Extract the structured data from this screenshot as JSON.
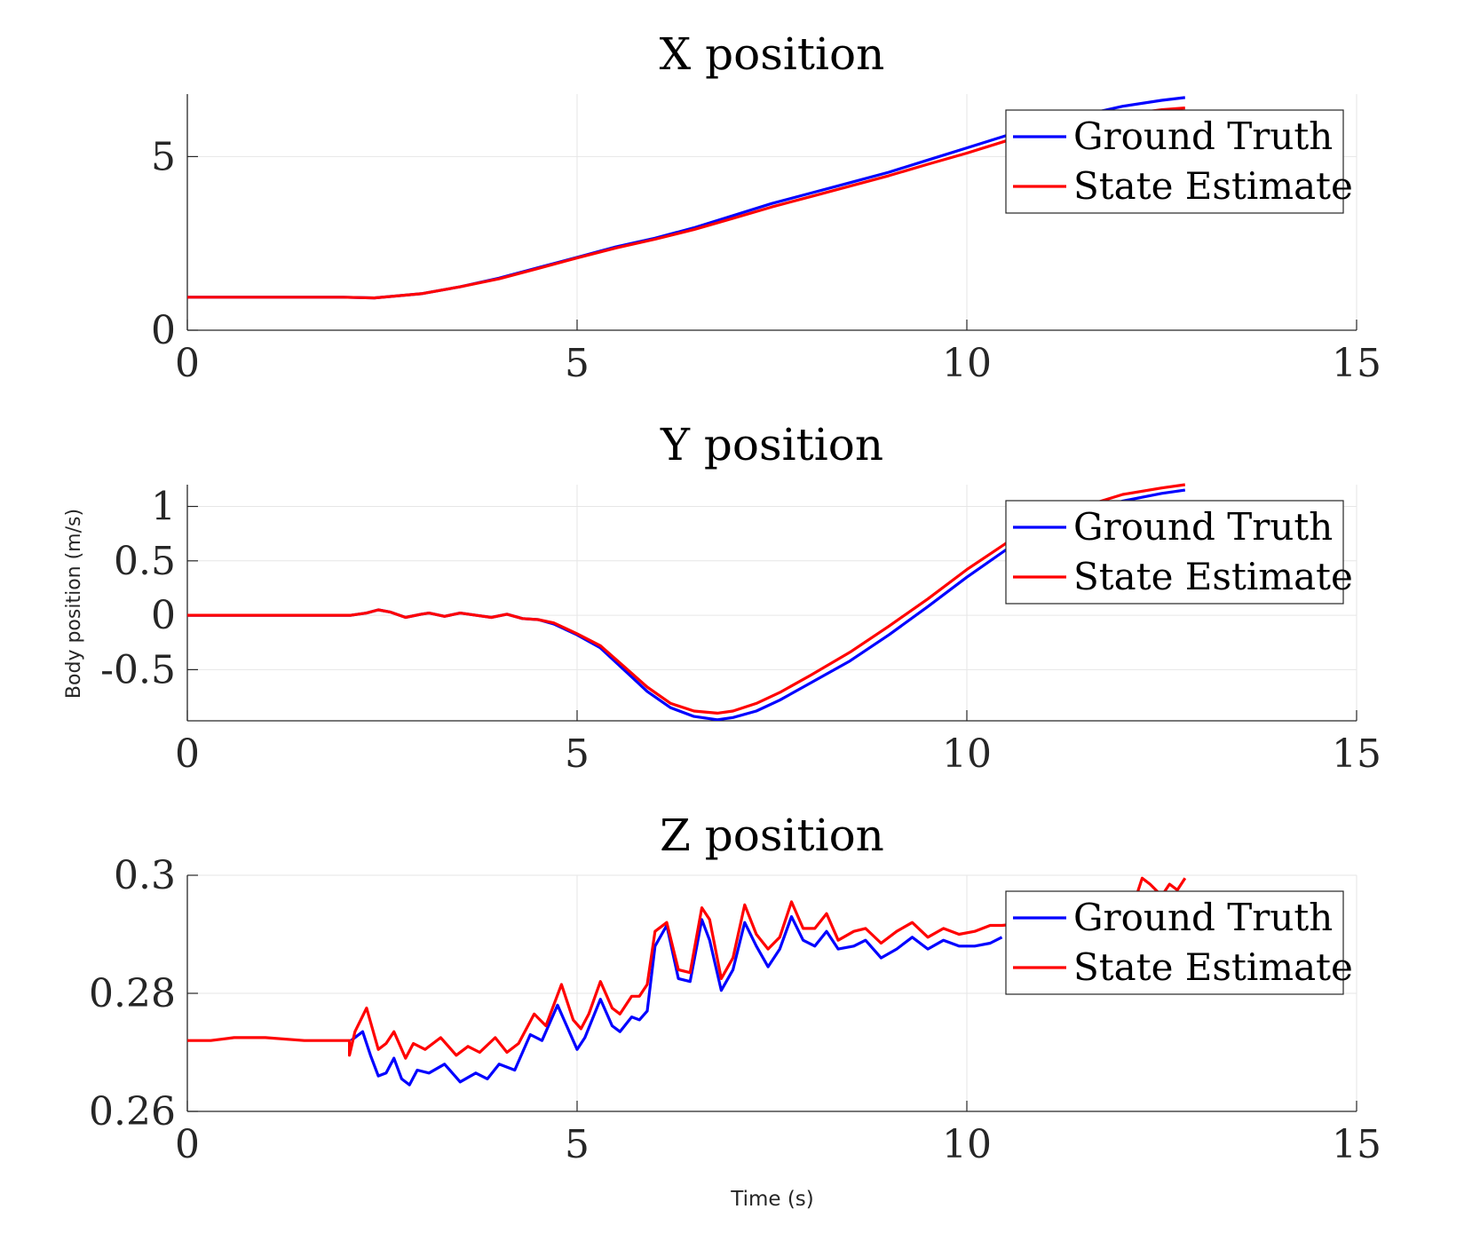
{
  "figure": {
    "ylabel": "Body position (m/s)",
    "xlabel": "Time (s)"
  },
  "chart_data": [
    {
      "type": "line",
      "title": "X position",
      "xlim": [
        0,
        15
      ],
      "ylim": [
        0,
        6.8
      ],
      "xticks": [
        0,
        5,
        10,
        15
      ],
      "yticks": [
        0,
        5
      ],
      "ytick_labels": [
        "0",
        "5"
      ],
      "grid": true,
      "legend": "top-right",
      "series": [
        {
          "name": "Ground Truth",
          "color": "#0000ff",
          "points": [
            [
              0,
              0.95
            ],
            [
              1,
              0.95
            ],
            [
              2,
              0.95
            ],
            [
              2.4,
              0.93
            ],
            [
              3,
              1.05
            ],
            [
              3.5,
              1.25
            ],
            [
              4,
              1.5
            ],
            [
              4.5,
              1.8
            ],
            [
              5,
              2.1
            ],
            [
              5.5,
              2.4
            ],
            [
              6,
              2.65
            ],
            [
              6.5,
              2.95
            ],
            [
              7,
              3.3
            ],
            [
              7.5,
              3.65
            ],
            [
              8,
              3.95
            ],
            [
              8.5,
              4.25
            ],
            [
              9,
              4.55
            ],
            [
              9.5,
              4.9
            ],
            [
              10,
              5.25
            ],
            [
              10.5,
              5.6
            ],
            [
              11,
              5.9
            ],
            [
              11.5,
              6.2
            ],
            [
              12,
              6.45
            ],
            [
              12.5,
              6.62
            ],
            [
              12.8,
              6.7
            ]
          ]
        },
        {
          "name": "State Estimate",
          "color": "#ff0000",
          "points": [
            [
              0,
              0.95
            ],
            [
              1,
              0.95
            ],
            [
              2,
              0.95
            ],
            [
              2.4,
              0.93
            ],
            [
              3,
              1.05
            ],
            [
              3.5,
              1.25
            ],
            [
              4,
              1.48
            ],
            [
              4.5,
              1.78
            ],
            [
              5,
              2.08
            ],
            [
              5.5,
              2.37
            ],
            [
              6,
              2.62
            ],
            [
              6.5,
              2.9
            ],
            [
              7,
              3.22
            ],
            [
              7.5,
              3.55
            ],
            [
              8,
              3.85
            ],
            [
              8.5,
              4.15
            ],
            [
              9,
              4.45
            ],
            [
              9.5,
              4.78
            ],
            [
              10,
              5.1
            ],
            [
              10.5,
              5.45
            ],
            [
              11,
              5.75
            ],
            [
              11.5,
              6.0
            ],
            [
              12,
              6.2
            ],
            [
              12.5,
              6.35
            ],
            [
              12.8,
              6.4
            ]
          ]
        }
      ]
    },
    {
      "type": "line",
      "title": "Y position",
      "xlim": [
        0,
        15
      ],
      "ylim": [
        -0.97,
        1.2
      ],
      "xticks": [
        0,
        5,
        10,
        15
      ],
      "yticks": [
        -0.5,
        0,
        0.5,
        1
      ],
      "ytick_labels": [
        "-0.5",
        "0",
        "0.5",
        "1"
      ],
      "grid": true,
      "legend": "top-right",
      "series": [
        {
          "name": "Ground Truth",
          "color": "#0000ff",
          "points": [
            [
              0,
              0
            ],
            [
              1,
              0
            ],
            [
              2.1,
              0
            ],
            [
              2.3,
              0.02
            ],
            [
              2.45,
              0.05
            ],
            [
              2.6,
              0.03
            ],
            [
              2.8,
              -0.02
            ],
            [
              3,
              0.01
            ],
            [
              3.1,
              0.02
            ],
            [
              3.3,
              -0.01
            ],
            [
              3.5,
              0.02
            ],
            [
              3.7,
              0.0
            ],
            [
              3.9,
              -0.02
            ],
            [
              4.1,
              0.01
            ],
            [
              4.3,
              -0.03
            ],
            [
              4.5,
              -0.04
            ],
            [
              4.7,
              -0.08
            ],
            [
              5,
              -0.18
            ],
            [
              5.3,
              -0.3
            ],
            [
              5.6,
              -0.5
            ],
            [
              5.9,
              -0.7
            ],
            [
              6.2,
              -0.85
            ],
            [
              6.5,
              -0.93
            ],
            [
              6.8,
              -0.96
            ],
            [
              7.0,
              -0.94
            ],
            [
              7.3,
              -0.88
            ],
            [
              7.6,
              -0.78
            ],
            [
              8,
              -0.62
            ],
            [
              8.5,
              -0.42
            ],
            [
              9,
              -0.18
            ],
            [
              9.5,
              0.08
            ],
            [
              10,
              0.35
            ],
            [
              10.5,
              0.6
            ],
            [
              11,
              0.78
            ],
            [
              11.5,
              0.93
            ],
            [
              12,
              1.05
            ],
            [
              12.5,
              1.12
            ],
            [
              12.8,
              1.15
            ]
          ]
        },
        {
          "name": "State Estimate",
          "color": "#ff0000",
          "points": [
            [
              0,
              0
            ],
            [
              1,
              0
            ],
            [
              2.1,
              0
            ],
            [
              2.3,
              0.02
            ],
            [
              2.45,
              0.05
            ],
            [
              2.6,
              0.03
            ],
            [
              2.8,
              -0.02
            ],
            [
              3,
              0.01
            ],
            [
              3.1,
              0.02
            ],
            [
              3.3,
              -0.01
            ],
            [
              3.5,
              0.02
            ],
            [
              3.7,
              0.0
            ],
            [
              3.9,
              -0.02
            ],
            [
              4.1,
              0.01
            ],
            [
              4.3,
              -0.03
            ],
            [
              4.5,
              -0.04
            ],
            [
              4.7,
              -0.07
            ],
            [
              5,
              -0.17
            ],
            [
              5.3,
              -0.28
            ],
            [
              5.6,
              -0.47
            ],
            [
              5.9,
              -0.66
            ],
            [
              6.2,
              -0.81
            ],
            [
              6.5,
              -0.88
            ],
            [
              6.8,
              -0.9
            ],
            [
              7.0,
              -0.88
            ],
            [
              7.3,
              -0.81
            ],
            [
              7.6,
              -0.71
            ],
            [
              8,
              -0.55
            ],
            [
              8.5,
              -0.34
            ],
            [
              9,
              -0.1
            ],
            [
              9.5,
              0.15
            ],
            [
              10,
              0.42
            ],
            [
              10.5,
              0.66
            ],
            [
              11,
              0.85
            ],
            [
              11.5,
              1.0
            ],
            [
              12,
              1.11
            ],
            [
              12.5,
              1.17
            ],
            [
              12.8,
              1.2
            ]
          ]
        }
      ]
    },
    {
      "type": "line",
      "title": "Z position",
      "xlim": [
        0,
        15
      ],
      "ylim": [
        0.26,
        0.3
      ],
      "xticks": [
        0,
        5,
        10,
        15
      ],
      "yticks": [
        0.26,
        0.28,
        0.3
      ],
      "ytick_labels": [
        "0.26",
        "0.28",
        "0.3"
      ],
      "grid": true,
      "legend": "top-right",
      "series": [
        {
          "name": "Ground Truth",
          "color": "#0000ff",
          "points": [
            [
              2.1,
              0.272
            ],
            [
              2.25,
              0.2735
            ],
            [
              2.35,
              0.2695
            ],
            [
              2.45,
              0.266
            ],
            [
              2.55,
              0.2665
            ],
            [
              2.65,
              0.269
            ],
            [
              2.75,
              0.2655
            ],
            [
              2.85,
              0.2645
            ],
            [
              2.95,
              0.267
            ],
            [
              3.1,
              0.2665
            ],
            [
              3.3,
              0.268
            ],
            [
              3.5,
              0.265
            ],
            [
              3.7,
              0.2665
            ],
            [
              3.85,
              0.2655
            ],
            [
              4.0,
              0.268
            ],
            [
              4.2,
              0.267
            ],
            [
              4.4,
              0.273
            ],
            [
              4.55,
              0.272
            ],
            [
              4.75,
              0.278
            ],
            [
              4.9,
              0.2735
            ],
            [
              5.0,
              0.2705
            ],
            [
              5.1,
              0.2725
            ],
            [
              5.3,
              0.279
            ],
            [
              5.45,
              0.2745
            ],
            [
              5.55,
              0.2735
            ],
            [
              5.7,
              0.276
            ],
            [
              5.8,
              0.2755
            ],
            [
              5.9,
              0.277
            ],
            [
              6.0,
              0.288
            ],
            [
              6.15,
              0.2915
            ],
            [
              6.3,
              0.2825
            ],
            [
              6.45,
              0.282
            ],
            [
              6.6,
              0.2925
            ],
            [
              6.7,
              0.289
            ],
            [
              6.85,
              0.2805
            ],
            [
              7.0,
              0.284
            ],
            [
              7.15,
              0.292
            ],
            [
              7.3,
              0.288
            ],
            [
              7.45,
              0.2845
            ],
            [
              7.6,
              0.2875
            ],
            [
              7.75,
              0.293
            ],
            [
              7.9,
              0.289
            ],
            [
              8.05,
              0.288
            ],
            [
              8.2,
              0.2905
            ],
            [
              8.35,
              0.2875
            ],
            [
              8.55,
              0.288
            ],
            [
              8.7,
              0.289
            ],
            [
              8.9,
              0.286
            ],
            [
              9.1,
              0.2875
            ],
            [
              9.3,
              0.2895
            ],
            [
              9.5,
              0.2875
            ],
            [
              9.7,
              0.289
            ],
            [
              9.9,
              0.288
            ],
            [
              10.1,
              0.288
            ],
            [
              10.3,
              0.2885
            ],
            [
              10.45,
              0.2895
            ]
          ]
        },
        {
          "name": "State Estimate",
          "color": "#ff0000",
          "points": [
            [
              0,
              0.272
            ],
            [
              0.3,
              0.272
            ],
            [
              0.6,
              0.2725
            ],
            [
              1.0,
              0.2725
            ],
            [
              1.5,
              0.272
            ],
            [
              2.0,
              0.272
            ],
            [
              2.08,
              0.272
            ],
            [
              2.08,
              0.2695
            ],
            [
              2.15,
              0.2735
            ],
            [
              2.3,
              0.2775
            ],
            [
              2.45,
              0.2705
            ],
            [
              2.55,
              0.2715
            ],
            [
              2.65,
              0.2735
            ],
            [
              2.8,
              0.269
            ],
            [
              2.9,
              0.2715
            ],
            [
              3.05,
              0.2705
            ],
            [
              3.25,
              0.2725
            ],
            [
              3.45,
              0.2695
            ],
            [
              3.6,
              0.271
            ],
            [
              3.75,
              0.27
            ],
            [
              3.95,
              0.2725
            ],
            [
              4.1,
              0.27
            ],
            [
              4.25,
              0.2715
            ],
            [
              4.45,
              0.2765
            ],
            [
              4.6,
              0.2745
            ],
            [
              4.8,
              0.2815
            ],
            [
              4.95,
              0.2755
            ],
            [
              5.05,
              0.274
            ],
            [
              5.15,
              0.2765
            ],
            [
              5.3,
              0.282
            ],
            [
              5.45,
              0.2775
            ],
            [
              5.55,
              0.2765
            ],
            [
              5.7,
              0.2795
            ],
            [
              5.8,
              0.2795
            ],
            [
              5.9,
              0.2815
            ],
            [
              6.0,
              0.2905
            ],
            [
              6.15,
              0.292
            ],
            [
              6.3,
              0.284
            ],
            [
              6.45,
              0.2835
            ],
            [
              6.6,
              0.2945
            ],
            [
              6.7,
              0.2925
            ],
            [
              6.85,
              0.2825
            ],
            [
              7.0,
              0.286
            ],
            [
              7.15,
              0.295
            ],
            [
              7.3,
              0.29
            ],
            [
              7.45,
              0.2875
            ],
            [
              7.6,
              0.2895
            ],
            [
              7.75,
              0.2955
            ],
            [
              7.9,
              0.291
            ],
            [
              8.05,
              0.291
            ],
            [
              8.2,
              0.2935
            ],
            [
              8.35,
              0.289
            ],
            [
              8.55,
              0.2905
            ],
            [
              8.7,
              0.291
            ],
            [
              8.9,
              0.2885
            ],
            [
              9.1,
              0.2905
            ],
            [
              9.3,
              0.292
            ],
            [
              9.5,
              0.2895
            ],
            [
              9.7,
              0.291
            ],
            [
              9.9,
              0.29
            ],
            [
              10.1,
              0.2905
            ],
            [
              10.3,
              0.2915
            ],
            [
              10.45,
              0.2915
            ],
            [
              12.1,
              0.2935
            ],
            [
              12.25,
              0.2995
            ],
            [
              12.35,
              0.2985
            ],
            [
              12.5,
              0.2965
            ],
            [
              12.6,
              0.2985
            ],
            [
              12.7,
              0.2975
            ],
            [
              12.8,
              0.2995
            ]
          ]
        }
      ]
    }
  ]
}
